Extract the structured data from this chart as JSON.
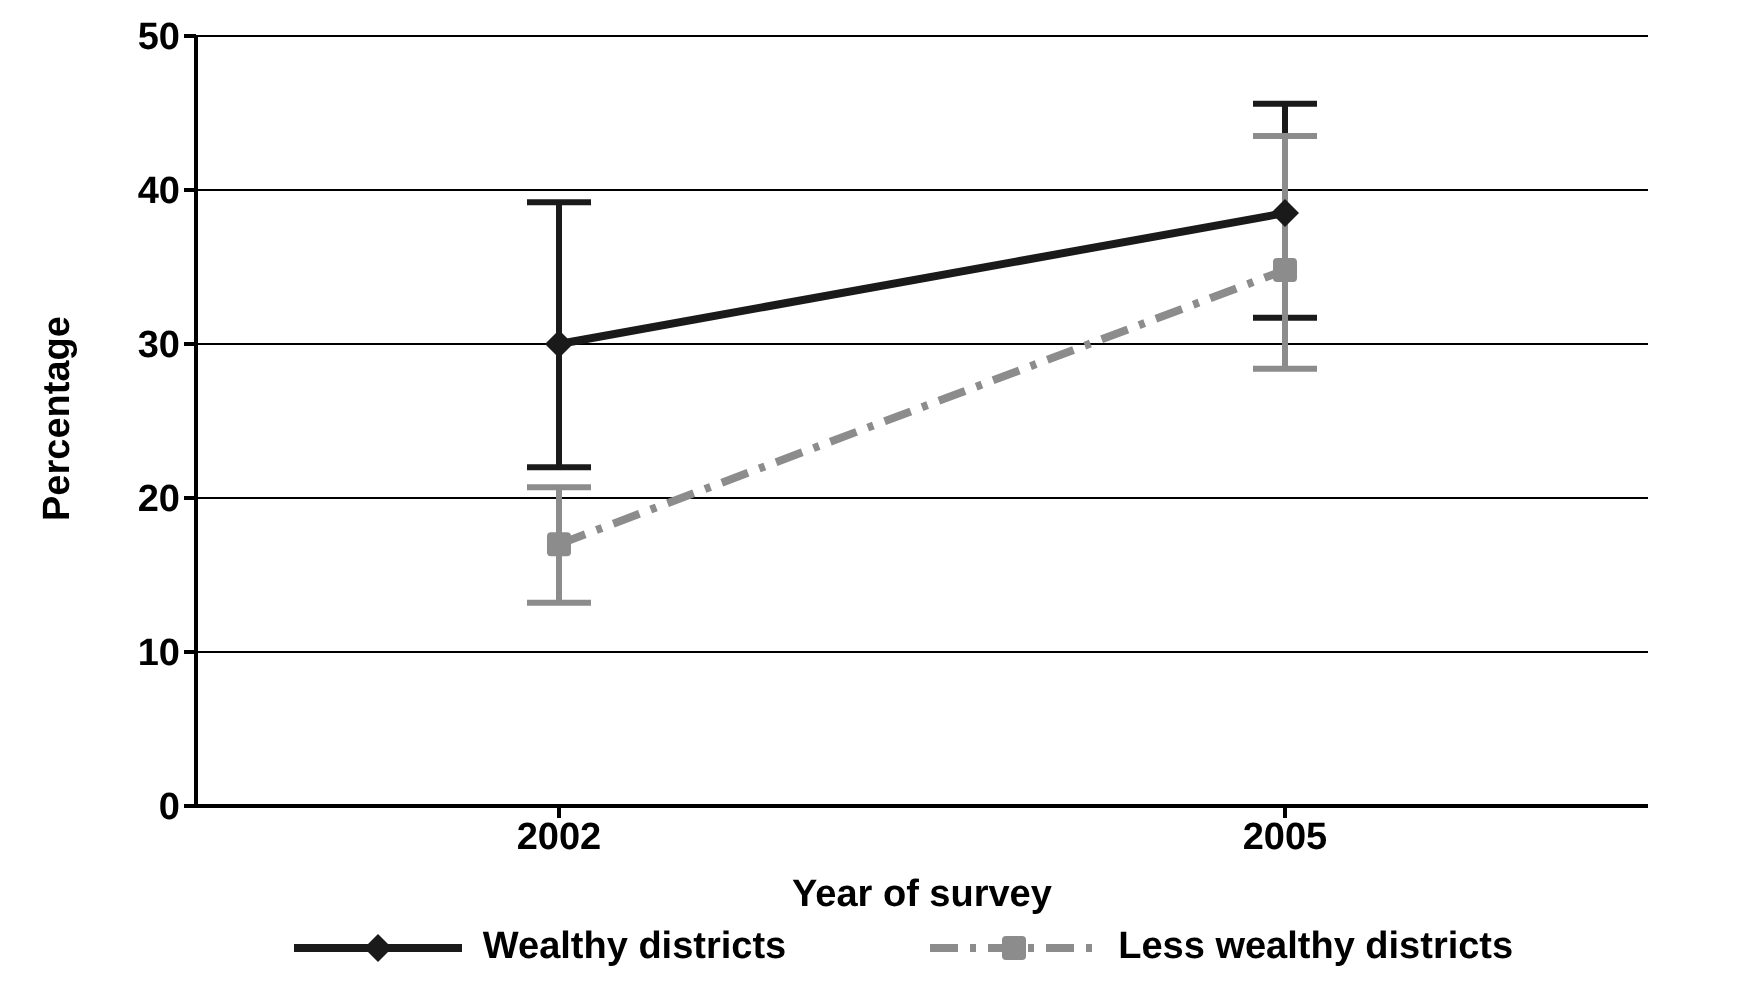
{
  "chart_data": {
    "type": "line",
    "xlabel": "Year of survey",
    "ylabel": "Percentage",
    "categories": [
      "2002",
      "2005"
    ],
    "series": [
      {
        "name": "Wealthy districts",
        "color": "#1a1a1a",
        "values": [
          30,
          38.5
        ],
        "errors": [
          [
            22,
            39.2
          ],
          [
            31.7,
            45.6
          ]
        ],
        "marker": "diamond",
        "line_style": "solid"
      },
      {
        "name": "Less wealthy districts",
        "color": "#8c8c8c",
        "values": [
          17,
          34.8
        ],
        "errors": [
          [
            13.2,
            20.7
          ],
          [
            28.4,
            43.5
          ]
        ],
        "marker": "square",
        "line_style": "dashed"
      }
    ],
    "ylim": [
      0,
      50
    ],
    "yticks": [
      0,
      10,
      20,
      30,
      40,
      50
    ],
    "grid": "y",
    "legend": "bottom"
  }
}
